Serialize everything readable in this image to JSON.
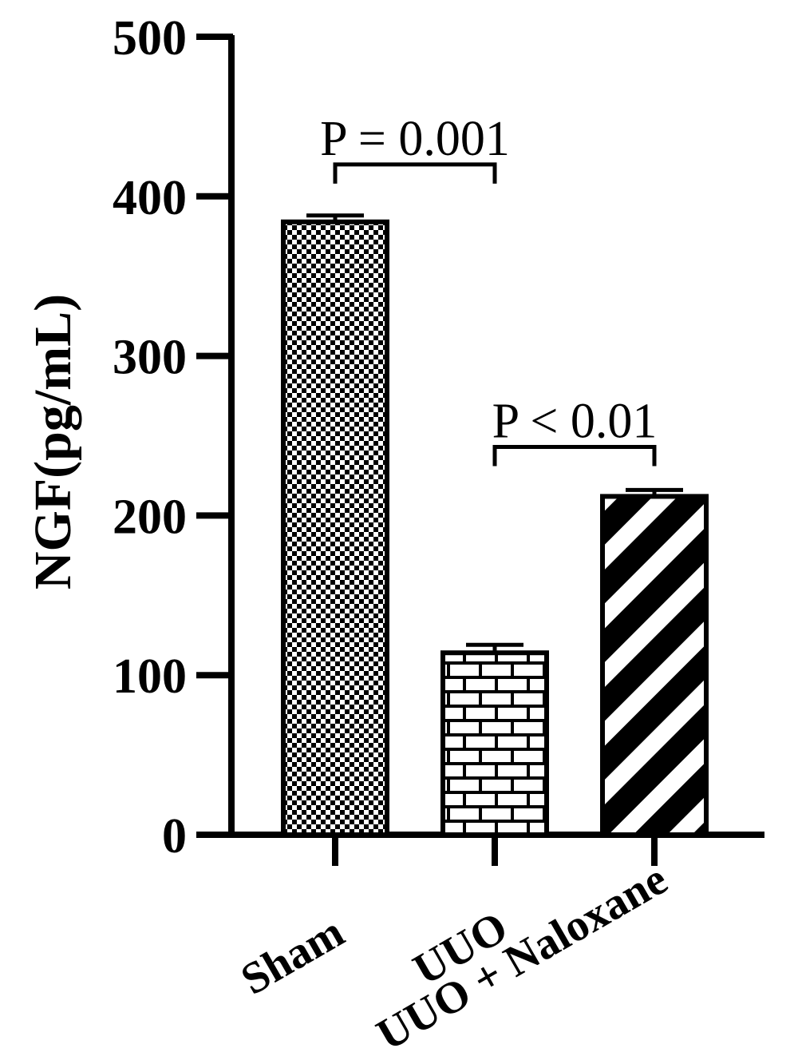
{
  "chart_data": {
    "type": "bar",
    "categories": [
      "Sham",
      "UUO",
      "UUO + Naloxane"
    ],
    "values": [
      384,
      114,
      212
    ],
    "errors": [
      4,
      5,
      4
    ],
    "patterns": [
      "checker",
      "brick",
      "diagonal-stripes"
    ],
    "ylabel": "NGF(pg/mL)",
    "xlabel": "",
    "ylim": [
      0,
      500
    ],
    "yticks": [
      "0",
      "100",
      "200",
      "300",
      "400",
      "500"
    ],
    "ytick_values": [
      0,
      100,
      200,
      300,
      400,
      500
    ],
    "annotations": [
      {
        "text": "P = 0.001",
        "from": 0,
        "to": 1,
        "y": 420
      },
      {
        "text": "P < 0.01",
        "from": 1,
        "to": 2,
        "y": 243
      }
    ],
    "grid": false,
    "colors": {
      "ink": "#000000",
      "fill": "#ffffff"
    }
  }
}
